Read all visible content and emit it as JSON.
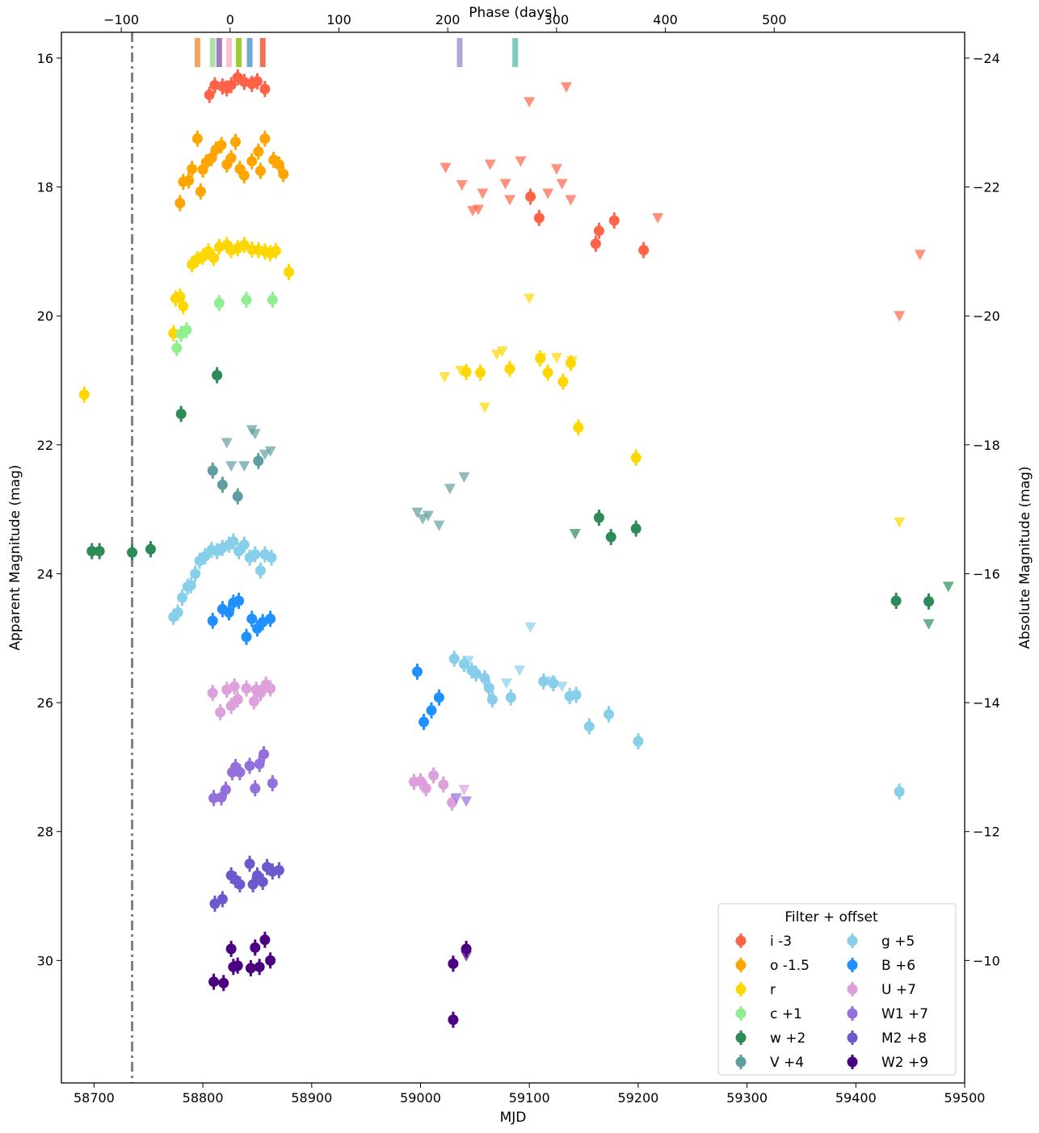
{
  "chart_data": {
    "type": "scatter",
    "xlabel": "MJD",
    "ylabel": "Apparent Magnitude (mag)",
    "y2label": "Absolute Magnitude (mag)",
    "top_xlabel": "Phase (days)",
    "xlim": [
      58670,
      59500
    ],
    "ylim": [
      31.9,
      15.6
    ],
    "y_inverted": true,
    "x_ticks": [
      58700,
      58800,
      58900,
      59000,
      59100,
      59200,
      59300,
      59400,
      59500
    ],
    "y_ticks": [
      16,
      18,
      20,
      22,
      24,
      26,
      28,
      30
    ],
    "y2_ticks": [
      -24,
      -22,
      -20,
      -18,
      -16,
      -14,
      -12,
      -10
    ],
    "phase_ticks": [
      -100,
      0,
      100,
      200,
      300,
      400,
      500
    ],
    "phase_zero_mjd": 58825,
    "absolute_offset": 40.0,
    "vline_mjd": 58735,
    "legend": {
      "title": "Filter + offset",
      "position": "lower right",
      "columns": 2
    },
    "series": [
      {
        "name": "i -3",
        "color": "#ff6347",
        "points": [
          [
            58806,
            16.57
          ],
          [
            58811,
            16.42
          ],
          [
            58818,
            16.44
          ],
          [
            58822,
            16.47
          ],
          [
            58826,
            16.42
          ],
          [
            58832,
            16.3
          ],
          [
            58838,
            16.37
          ],
          [
            58845,
            16.4
          ],
          [
            58850,
            16.36
          ],
          [
            58857,
            16.48
          ],
          [
            59101,
            18.15
          ],
          [
            59109,
            18.48
          ],
          [
            59161,
            18.88
          ],
          [
            59164,
            18.68
          ],
          [
            59178,
            18.52
          ],
          [
            59205,
            18.98
          ]
        ],
        "upper_limits": [
          [
            58823,
            16.43
          ],
          [
            58847,
            16.38
          ],
          [
            59023,
            17.7
          ],
          [
            59038,
            17.97
          ],
          [
            59048,
            18.37
          ],
          [
            59053,
            18.35
          ],
          [
            59057,
            18.1
          ],
          [
            59064,
            17.65
          ],
          [
            59078,
            17.95
          ],
          [
            59082,
            18.2
          ],
          [
            59092,
            17.6
          ],
          [
            59100,
            16.68
          ],
          [
            59117,
            18.1
          ],
          [
            59125,
            17.72
          ],
          [
            59130,
            17.95
          ],
          [
            59134,
            16.45
          ],
          [
            59138,
            18.2
          ],
          [
            59218,
            18.48
          ],
          [
            59440,
            20.0
          ],
          [
            59459,
            19.05
          ]
        ]
      },
      {
        "name": "o -1.5",
        "color": "#ffa500",
        "points": [
          [
            58779,
            18.25
          ],
          [
            58782,
            17.92
          ],
          [
            58787,
            17.9
          ],
          [
            58790,
            17.72
          ],
          [
            58795,
            17.25
          ],
          [
            58798,
            18.07
          ],
          [
            58800,
            17.73
          ],
          [
            58803,
            17.62
          ],
          [
            58808,
            17.55
          ],
          [
            58812,
            17.42
          ],
          [
            58817,
            17.35
          ],
          [
            58822,
            17.65
          ],
          [
            58826,
            17.55
          ],
          [
            58830,
            17.3
          ],
          [
            58834,
            17.72
          ],
          [
            58838,
            17.82
          ],
          [
            58845,
            17.6
          ],
          [
            58851,
            17.45
          ],
          [
            58853,
            17.75
          ],
          [
            58857,
            17.25
          ],
          [
            58865,
            17.58
          ],
          [
            58870,
            17.65
          ],
          [
            58874,
            17.8
          ]
        ]
      },
      {
        "name": "r",
        "color": "#ffd700",
        "points": [
          [
            58691,
            21.22
          ],
          [
            58773,
            20.27
          ],
          [
            58775,
            19.73
          ],
          [
            58779,
            19.7
          ],
          [
            58782,
            19.85
          ],
          [
            58790,
            19.2
          ],
          [
            58795,
            19.12
          ],
          [
            58800,
            19.08
          ],
          [
            58805,
            19.0
          ],
          [
            58810,
            19.1
          ],
          [
            58815,
            18.93
          ],
          [
            58822,
            18.9
          ],
          [
            58826,
            18.98
          ],
          [
            58832,
            18.95
          ],
          [
            58838,
            18.9
          ],
          [
            58845,
            18.97
          ],
          [
            58851,
            18.98
          ],
          [
            58857,
            19.0
          ],
          [
            58862,
            19.03
          ],
          [
            58867,
            18.99
          ],
          [
            58879,
            19.32
          ],
          [
            59042,
            20.87
          ],
          [
            59055,
            20.88
          ],
          [
            59082,
            20.82
          ],
          [
            59110,
            20.66
          ],
          [
            59117,
            20.88
          ],
          [
            59131,
            21.02
          ],
          [
            59138,
            20.73
          ],
          [
            59145,
            21.73
          ],
          [
            59198,
            22.2
          ]
        ],
        "upper_limits": [
          [
            59022,
            20.95
          ],
          [
            59037,
            20.85
          ],
          [
            59059,
            21.42
          ],
          [
            59070,
            20.6
          ],
          [
            59075,
            20.55
          ],
          [
            59100,
            19.73
          ],
          [
            59111,
            20.65
          ],
          [
            59125,
            20.65
          ],
          [
            59139,
            20.7
          ],
          [
            59440,
            23.2
          ]
        ]
      },
      {
        "name": "c +1",
        "color": "#90ee90",
        "points": [
          [
            58776,
            20.5
          ],
          [
            58780,
            20.28
          ],
          [
            58785,
            20.22
          ],
          [
            58815,
            19.8
          ],
          [
            58840,
            19.75
          ],
          [
            58864,
            19.75
          ]
        ]
      },
      {
        "name": "w +2",
        "color": "#2e8b57",
        "points": [
          [
            58698,
            23.65
          ],
          [
            58705,
            23.65
          ],
          [
            58735,
            23.67
          ],
          [
            58752,
            23.62
          ],
          [
            58780,
            21.52
          ],
          [
            58813,
            20.92
          ],
          [
            59164,
            23.13
          ],
          [
            59175,
            23.43
          ],
          [
            59198,
            23.3
          ],
          [
            59437,
            24.42
          ],
          [
            59467,
            24.43
          ]
        ],
        "upper_limits": [
          [
            59142,
            23.38
          ],
          [
            59467,
            24.78
          ],
          [
            59485,
            24.2
          ]
        ]
      },
      {
        "name": "V +4",
        "color": "#5f9ea0",
        "points": [
          [
            58809,
            22.4
          ],
          [
            58818,
            22.62
          ],
          [
            58832,
            22.8
          ],
          [
            58851,
            22.25
          ]
        ],
        "upper_limits": [
          [
            58822,
            21.97
          ],
          [
            58826,
            22.33
          ],
          [
            58838,
            22.33
          ],
          [
            58845,
            21.77
          ],
          [
            58848,
            21.83
          ],
          [
            58857,
            22.15
          ],
          [
            58862,
            22.1
          ],
          [
            58997,
            23.05
          ],
          [
            59002,
            23.15
          ],
          [
            59007,
            23.1
          ],
          [
            59017,
            23.25
          ],
          [
            59027,
            22.68
          ],
          [
            59040,
            22.5
          ]
        ]
      },
      {
        "name": "g +5",
        "color": "#87ceeb",
        "points": [
          [
            58773,
            24.67
          ],
          [
            58777,
            24.6
          ],
          [
            58781,
            24.37
          ],
          [
            58786,
            24.2
          ],
          [
            58789,
            24.18
          ],
          [
            58793,
            24.0
          ],
          [
            58797,
            23.8
          ],
          [
            58802,
            23.73
          ],
          [
            58808,
            23.63
          ],
          [
            58813,
            23.65
          ],
          [
            58818,
            23.6
          ],
          [
            58824,
            23.55
          ],
          [
            58828,
            23.5
          ],
          [
            58833,
            23.65
          ],
          [
            58838,
            23.55
          ],
          [
            58843,
            23.75
          ],
          [
            58848,
            23.7
          ],
          [
            58853,
            23.95
          ],
          [
            58857,
            23.7
          ],
          [
            58863,
            23.75
          ],
          [
            59031,
            25.32
          ],
          [
            59040,
            25.4
          ],
          [
            59047,
            25.5
          ],
          [
            59051,
            25.55
          ],
          [
            59059,
            25.62
          ],
          [
            59063,
            25.77
          ],
          [
            59066,
            25.95
          ],
          [
            59083,
            25.92
          ],
          [
            59113,
            25.67
          ],
          [
            59122,
            25.7
          ],
          [
            59137,
            25.9
          ],
          [
            59143,
            25.88
          ],
          [
            59155,
            26.37
          ],
          [
            59173,
            26.18
          ],
          [
            59200,
            26.6
          ],
          [
            59440,
            27.38
          ]
        ],
        "upper_limits": [
          [
            59044,
            25.35
          ],
          [
            59079,
            25.7
          ],
          [
            59091,
            25.5
          ],
          [
            59101,
            24.83
          ],
          [
            59120,
            25.67
          ],
          [
            59130,
            25.75
          ]
        ]
      },
      {
        "name": "B +6",
        "color": "#1e90ff",
        "points": [
          [
            58809,
            24.73
          ],
          [
            58818,
            24.55
          ],
          [
            58824,
            24.6
          ],
          [
            58828,
            24.45
          ],
          [
            58833,
            24.42
          ],
          [
            58840,
            24.98
          ],
          [
            58845,
            24.7
          ],
          [
            58850,
            24.85
          ],
          [
            58855,
            24.75
          ],
          [
            58862,
            24.7
          ],
          [
            58997,
            25.52
          ],
          [
            59003,
            26.3
          ],
          [
            59010,
            26.12
          ],
          [
            59017,
            25.92
          ]
        ]
      },
      {
        "name": "U +7",
        "color": "#dda0dd",
        "points": [
          [
            58809,
            25.85
          ],
          [
            58816,
            26.15
          ],
          [
            58822,
            25.8
          ],
          [
            58826,
            26.05
          ],
          [
            58829,
            25.75
          ],
          [
            58832,
            25.95
          ],
          [
            58840,
            25.78
          ],
          [
            58847,
            25.98
          ],
          [
            58849,
            25.8
          ],
          [
            58853,
            25.85
          ],
          [
            58858,
            25.72
          ],
          [
            58862,
            25.78
          ],
          [
            58994,
            27.23
          ],
          [
            59000,
            27.22
          ],
          [
            59005,
            27.33
          ],
          [
            59012,
            27.13
          ],
          [
            59021,
            27.27
          ],
          [
            59029,
            27.55
          ]
        ],
        "upper_limits": [
          [
            59040,
            27.35
          ]
        ]
      },
      {
        "name": "W1 +7",
        "color": "#9370db",
        "points": [
          [
            58810,
            27.48
          ],
          [
            58817,
            27.47
          ],
          [
            58821,
            27.35
          ],
          [
            58827,
            27.08
          ],
          [
            58830,
            27.0
          ],
          [
            58834,
            27.08
          ],
          [
            58843,
            26.98
          ],
          [
            58848,
            27.33
          ],
          [
            58852,
            26.95
          ],
          [
            58856,
            26.8
          ],
          [
            58864,
            27.25
          ]
        ],
        "upper_limits": [
          [
            59033,
            27.48
          ],
          [
            59042,
            27.53
          ]
        ]
      },
      {
        "name": "M2 +8",
        "color": "#6a5acd",
        "points": [
          [
            58811,
            29.12
          ],
          [
            58818,
            29.05
          ],
          [
            58826,
            28.68
          ],
          [
            58830,
            28.75
          ],
          [
            58834,
            28.82
          ],
          [
            58843,
            28.5
          ],
          [
            58846,
            28.82
          ],
          [
            58850,
            28.68
          ],
          [
            58855,
            28.78
          ],
          [
            58859,
            28.55
          ],
          [
            58864,
            28.62
          ],
          [
            58870,
            28.6
          ]
        ]
      },
      {
        "name": "W2 +9",
        "color": "#4b0082",
        "points": [
          [
            58810,
            30.33
          ],
          [
            58819,
            30.35
          ],
          [
            58826,
            29.82
          ],
          [
            58828,
            30.1
          ],
          [
            58832,
            30.08
          ],
          [
            58844,
            30.12
          ],
          [
            58848,
            29.8
          ],
          [
            58852,
            30.1
          ],
          [
            58857,
            29.68
          ],
          [
            58862,
            30.0
          ],
          [
            59030,
            30.05
          ],
          [
            59030,
            30.92
          ],
          [
            59042,
            29.82
          ]
        ],
        "upper_limits": [
          [
            59042,
            29.93
          ]
        ]
      }
    ],
    "phase_markers": [
      {
        "phase": -30,
        "color": "#f4a460"
      },
      {
        "phase": -16,
        "color": "#b0e0b0"
      },
      {
        "phase": -10,
        "color": "#a07cc0"
      },
      {
        "phase": -1,
        "color": "#ffc0cb"
      },
      {
        "phase": 8,
        "color": "#9acd32"
      },
      {
        "phase": 18,
        "color": "#6fa8dc"
      },
      {
        "phase": 30,
        "color": "#f0705a"
      },
      {
        "phase": 211,
        "color": "#b0a8d8"
      },
      {
        "phase": 262,
        "color": "#7fcdbb"
      }
    ]
  }
}
